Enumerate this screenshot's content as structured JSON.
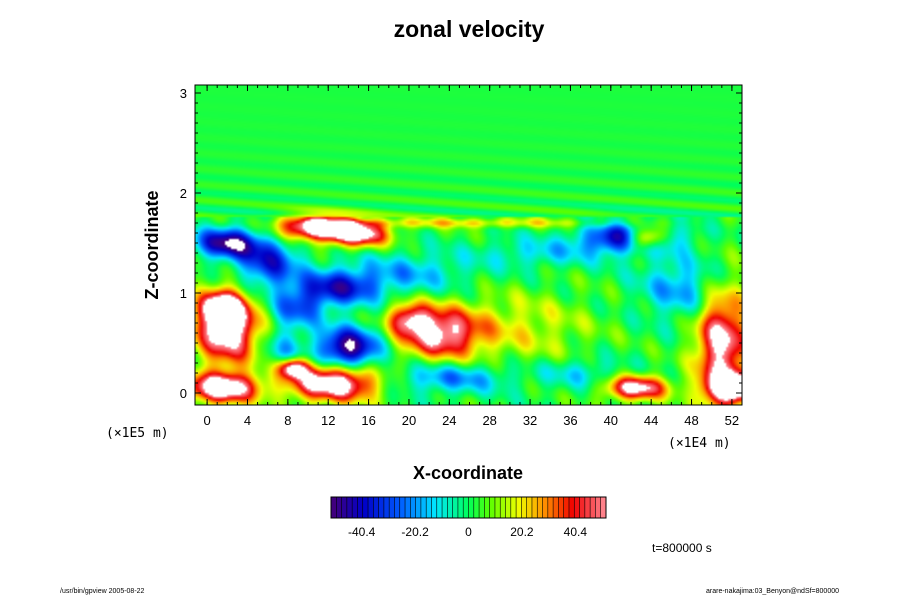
{
  "title": "zonal velocity",
  "chart_data": {
    "type": "heatmap",
    "title": "zonal velocity",
    "xlabel": "X-coordinate",
    "ylabel": "Z-coordinate",
    "x_scale_note": "(×1E5 m)",
    "x_scale_note_right": "(×1E4 m)",
    "xlim": [
      -1.2,
      53
    ],
    "ylim": [
      -0.12,
      3.08
    ],
    "x_ticks": [
      0,
      4,
      8,
      12,
      16,
      20,
      24,
      28,
      32,
      36,
      40,
      44,
      48,
      52
    ],
    "y_ticks": [
      0,
      1,
      2,
      3
    ],
    "colorbar": {
      "range": [
        -52,
        52
      ],
      "ticks": [
        -40.4,
        -20.2,
        0,
        20.2,
        40.4
      ],
      "tick_labels": [
        "-40.4",
        "-20.2",
        "0",
        "20.2",
        "40.4"
      ]
    },
    "field": {
      "background": 2,
      "features": [
        {
          "x": 2.0,
          "z": 0.65,
          "rx": 3.0,
          "rz": 0.35,
          "v": 52
        },
        {
          "x": 1.5,
          "z": 0.85,
          "rx": 2.0,
          "rz": 0.15,
          "v": 38
        },
        {
          "x": 1.5,
          "z": 0.05,
          "rx": 3.5,
          "rz": 0.15,
          "v": 52
        },
        {
          "x": 2.0,
          "z": 1.5,
          "rx": 3.0,
          "rz": 0.15,
          "v": -42
        },
        {
          "x": 6.0,
          "z": 1.3,
          "rx": 3.0,
          "rz": 0.25,
          "v": -30
        },
        {
          "x": 11.0,
          "z": 1.65,
          "rx": 4.0,
          "rz": 0.12,
          "v": 52
        },
        {
          "x": 15.0,
          "z": 1.58,
          "rx": 3.0,
          "rz": 0.12,
          "v": 40
        },
        {
          "x": 13.0,
          "z": 1.05,
          "rx": 4.0,
          "rz": 0.18,
          "v": -32
        },
        {
          "x": 9.0,
          "z": 0.85,
          "rx": 2.5,
          "rz": 0.2,
          "v": -22
        },
        {
          "x": 14.0,
          "z": 0.45,
          "rx": 3.0,
          "rz": 0.2,
          "v": -45
        },
        {
          "x": 12.5,
          "z": 0.1,
          "rx": 4.5,
          "rz": 0.18,
          "v": 52
        },
        {
          "x": 8.5,
          "z": 0.25,
          "rx": 1.5,
          "rz": 0.1,
          "v": 45
        },
        {
          "x": 7.5,
          "z": 0.4,
          "rx": 1.8,
          "rz": 0.25,
          "v": -15
        },
        {
          "x": 23.0,
          "z": 0.6,
          "rx": 4.0,
          "rz": 0.25,
          "v": 42
        },
        {
          "x": 20.0,
          "z": 0.75,
          "rx": 2.0,
          "rz": 0.15,
          "v": 28
        },
        {
          "x": 24.0,
          "z": 0.15,
          "rx": 6.0,
          "rz": 0.15,
          "v": -20
        },
        {
          "x": 20.0,
          "z": 1.2,
          "rx": 6.0,
          "rz": 0.2,
          "v": -15
        },
        {
          "x": 31.0,
          "z": 0.65,
          "rx": 7.0,
          "rz": 0.35,
          "v": 12
        },
        {
          "x": 33.0,
          "z": 1.4,
          "rx": 6.0,
          "rz": 0.15,
          "v": -12
        },
        {
          "x": 42.0,
          "z": 1.55,
          "rx": 4.5,
          "rz": 0.15,
          "v": -42
        },
        {
          "x": 43.5,
          "z": 1.55,
          "rx": 2.0,
          "rz": 0.12,
          "v": 52
        },
        {
          "x": 42.5,
          "z": 0.05,
          "rx": 3.0,
          "rz": 0.12,
          "v": 45
        },
        {
          "x": 47.0,
          "z": 1.05,
          "rx": 4.0,
          "rz": 0.3,
          "v": -18
        },
        {
          "x": 51.0,
          "z": 0.5,
          "rx": 2.5,
          "rz": 0.55,
          "v": 44
        },
        {
          "x": 52.0,
          "z": 0.05,
          "rx": 2.5,
          "rz": 0.15,
          "v": 52
        },
        {
          "x": 37.0,
          "z": 0.2,
          "rx": 4.0,
          "rz": 0.15,
          "v": -12
        },
        {
          "x": 26.0,
          "z": 1.7,
          "rx": 14.0,
          "rz": 0.05,
          "v": 15
        }
      ]
    }
  },
  "colorbar_labels": [
    "-40.4",
    "-20.2",
    "0",
    "20.2",
    "40.4"
  ],
  "time_label": "t=800000 s",
  "footer_left": "/usr/bin/gpview 2005-08-22",
  "footer_right": "arare-nakajima:03_Benyon@ndSf=800000"
}
